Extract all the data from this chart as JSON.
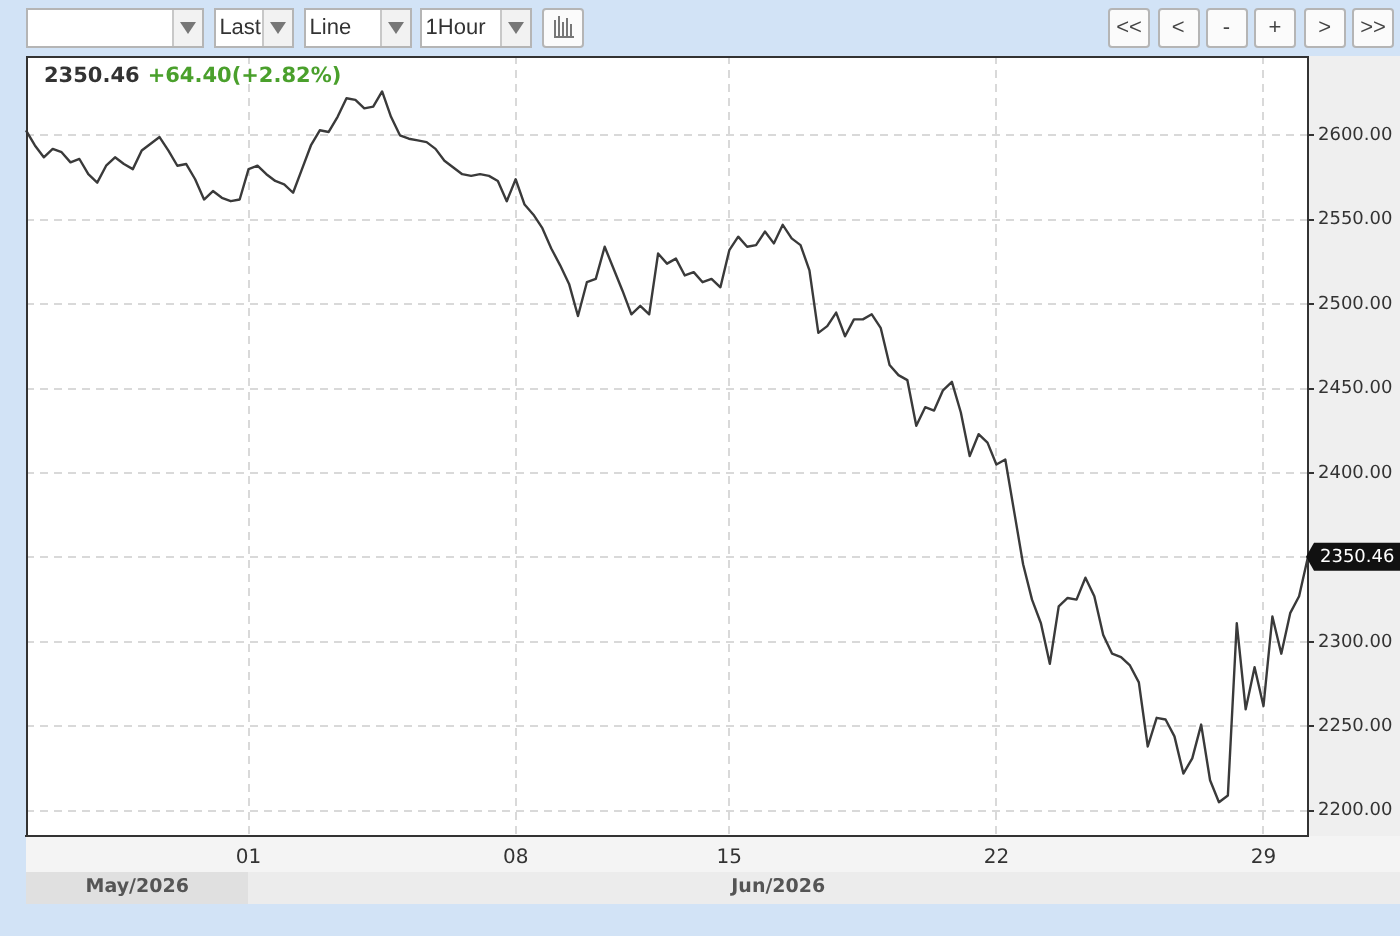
{
  "chart_data": {
    "type": "line",
    "categories": [
      null,
      null,
      null,
      null,
      null,
      null,
      null,
      null,
      null,
      null,
      null,
      null,
      null,
      null,
      null,
      null,
      null,
      null,
      null,
      null,
      null,
      null,
      null,
      null,
      null,
      "01",
      null,
      null,
      null,
      null,
      null,
      null,
      null,
      null,
      null,
      null,
      null,
      null,
      null,
      null,
      null,
      null,
      null,
      null,
      null,
      null,
      null,
      null,
      null,
      null,
      null,
      null,
      null,
      null,
      null,
      "08",
      null,
      null,
      null,
      null,
      null,
      null,
      null,
      null,
      null,
      null,
      null,
      null,
      null,
      null,
      null,
      null,
      null,
      null,
      null,
      null,
      null,
      null,
      null,
      "15",
      null,
      null,
      null,
      null,
      null,
      null,
      null,
      null,
      null,
      null,
      null,
      null,
      null,
      null,
      null,
      null,
      null,
      null,
      null,
      null,
      null,
      null,
      null,
      null,
      null,
      null,
      null,
      null,
      null,
      "22",
      null,
      null,
      null,
      null,
      null,
      null,
      null,
      null,
      null,
      null,
      null,
      null,
      null,
      null,
      null,
      null,
      null,
      null,
      null,
      null,
      null,
      null,
      null,
      null,
      null,
      null,
      null,
      null,
      null,
      "29",
      null,
      null,
      null,
      null,
      null
    ],
    "values": [
      2603,
      2594,
      2587,
      2592,
      2590,
      2584,
      2586,
      2577,
      2572,
      2582,
      2587,
      2583,
      2580,
      2591,
      2595,
      2599,
      2591,
      2582,
      2583,
      2574,
      2562,
      2567,
      2563,
      2561,
      2562,
      2580,
      2582,
      2577,
      2573,
      2571,
      2566,
      2580,
      2594,
      2603,
      2602,
      2611,
      2622,
      2621,
      2616,
      2617,
      2626,
      2611,
      2600,
      2598,
      2597,
      2596,
      2592,
      2585,
      2581,
      2577,
      2576,
      2577,
      2576,
      2573,
      2561,
      2574,
      2559,
      2553,
      2545,
      2533,
      2523,
      2512,
      2493,
      2513,
      2515,
      2534,
      2521,
      2508,
      2494,
      2499,
      2494,
      2530,
      2524,
      2527,
      2517,
      2519,
      2513,
      2515,
      2510,
      2532,
      2540,
      2534,
      2535,
      2543,
      2536,
      2547,
      2539,
      2535,
      2520,
      2483,
      2487,
      2495,
      2481,
      2491,
      2491,
      2494,
      2486,
      2464,
      2458,
      2455,
      2428,
      2439,
      2437,
      2449,
      2454,
      2436,
      2410,
      2423,
      2418,
      2405,
      2408,
      2377,
      2346,
      2325,
      2311,
      2287,
      2321,
      2326,
      2325,
      2338,
      2327,
      2304,
      2293,
      2291,
      2286,
      2276,
      2238,
      2255,
      2254,
      2244,
      2222,
      2231,
      2251,
      2218,
      2205,
      2209,
      2311,
      2260,
      2285,
      2262,
      2315,
      2293,
      2317,
      2327,
      2350.46
    ],
    "color": "#3a3a3a",
    "ylim": [
      2185,
      2647
    ],
    "yticks": [
      {
        "value": 2200,
        "label": "2200.00"
      },
      {
        "value": 2250,
        "label": "2250.00"
      },
      {
        "value": 2300,
        "label": "2300.00"
      },
      {
        "value": 2350,
        "label": null
      },
      {
        "value": 2400,
        "label": "2400.00"
      },
      {
        "value": 2450,
        "label": "2450.00"
      },
      {
        "value": 2500,
        "label": "2500.00"
      },
      {
        "value": 2550,
        "label": "2550.00"
      },
      {
        "value": 2600,
        "label": "2600.00"
      }
    ],
    "grid": true,
    "annotations": [
      "2350.46",
      "+64.40(+2.82%)",
      "2350.46",
      "Last",
      "Line",
      "1Hour",
      "<<",
      "<",
      "-",
      "+",
      ">",
      ">>",
      "May/2026",
      "Jun/2026"
    ]
  }
}
